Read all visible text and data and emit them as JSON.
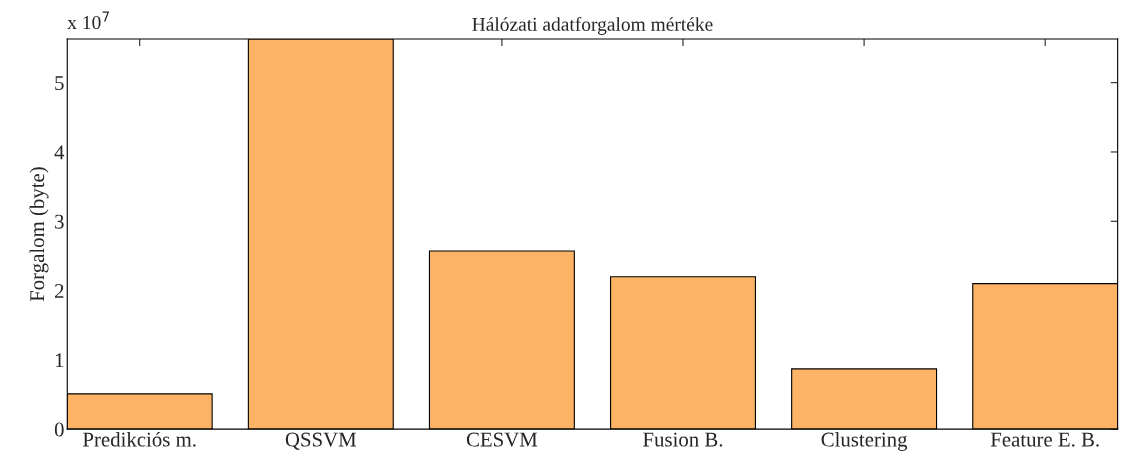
{
  "chart_data": {
    "type": "bar",
    "title": "Hálózati adatforgalom mértéke",
    "ylabel": "Forgalom (byte)",
    "categories": [
      "Predikciós m.",
      "QSSVM",
      "CESVM",
      "Fusion B.",
      "Clustering",
      "Feature E. B."
    ],
    "values": [
      0.51,
      5.63,
      2.57,
      2.2,
      0.87,
      2.1
    ],
    "color": "#fdb366",
    "ylim": [
      0,
      5.63
    ],
    "yticks": [
      0,
      1,
      2,
      3,
      4,
      5
    ],
    "grid": false,
    "legend": false,
    "annotations": [
      "x 10$^{7}$"
    ]
  }
}
